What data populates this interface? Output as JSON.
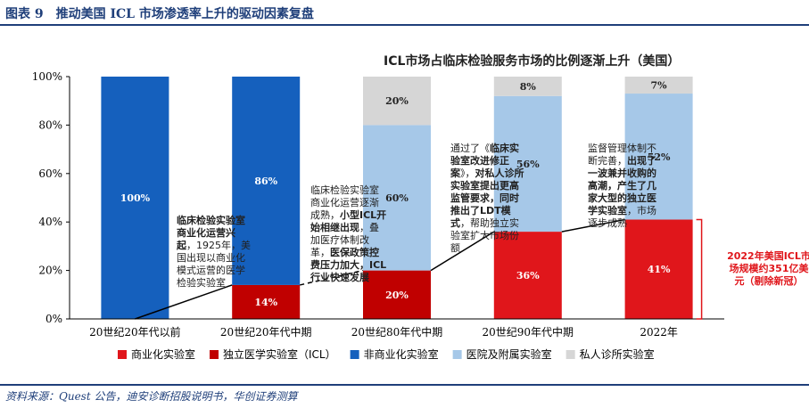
{
  "figure_title": "图表 9　推动美国 ICL 市场渗透率上升的驱动因素复盘",
  "source": "资料来源：Quest 公告，迪安诊断招股说明书，华创证券测算",
  "colors": {
    "commercial": "#e0161b",
    "independent": "#c00000",
    "non_commercial": "#1560bd",
    "hospital": "#a6c8e8",
    "private_clinic": "#d6d6d6",
    "frame": "#1f3f7a"
  },
  "chart_data": {
    "type": "bar",
    "stacked": true,
    "title": "ICL市场占临床检验服务市场的比例逐渐上升（美国）",
    "categories": [
      "20世纪20年代以前",
      "20世纪20年代中期",
      "20世纪80年代中期",
      "20世纪90年代中期",
      "2022年"
    ],
    "ylim": [
      0,
      100
    ],
    "yticks": [
      "0%",
      "20%",
      "40%",
      "60%",
      "80%",
      "100%"
    ],
    "series": [
      {
        "name": "商业化实验室",
        "color": "#e0161b",
        "values": [
          null,
          null,
          null,
          36,
          41
        ],
        "labels": [
          "",
          "",
          "",
          "36%",
          "41%"
        ]
      },
      {
        "name": "独立医学实验室（ICL）",
        "color": "#c00000",
        "values": [
          0,
          14,
          20,
          null,
          null
        ],
        "labels": [
          "0%",
          "14%",
          "20%",
          "",
          ""
        ]
      },
      {
        "name": "非商业化实验室",
        "color": "#1560bd",
        "values": [
          100,
          86,
          null,
          null,
          null
        ],
        "labels": [
          "100%",
          "86%",
          "",
          "",
          ""
        ]
      },
      {
        "name": "医院及附属实验室",
        "color": "#a6c8e8",
        "values": [
          null,
          null,
          60,
          56,
          52
        ],
        "labels": [
          "",
          "",
          "60%",
          "56%",
          "52%"
        ]
      },
      {
        "name": "私人诊所实验室",
        "color": "#d6d6d6",
        "values": [
          null,
          null,
          20,
          8,
          7
        ],
        "labels": [
          "",
          "",
          "20%",
          "8%",
          "7%"
        ]
      }
    ],
    "legend_position": "bottom",
    "grid": false
  },
  "annotations": {
    "a1": {
      "p1": "临床检验实验室商业化运营兴起",
      "p2": "，1925年，美国出现以商业化模式运营的医学检验实验室"
    },
    "a2": {
      "p1": "临床检验实验室商业化运营逐渐成熟，",
      "p2": "小型ICL开始相继出现",
      "p3": "，叠加医疗体制改革，",
      "p4": "医保政策控费压力加大，ICL行业快速发展"
    },
    "a3": {
      "p1": "通过了《",
      "p2": "临床实验室改进修正案",
      "p3": "》，",
      "p4": "对私人诊所实验室提出更高监管要求，同时推出了LDT模式",
      "p5": "，帮助独立实验室扩大市场份额"
    },
    "a4": {
      "p1": "监督管理体制不断完善，",
      "p2": "出现了一波兼并收购的高潮，产生了几家大型的独立医学实验室",
      "p3": "，市场逐步成熟"
    },
    "side_note": "2022年美国ICL市场规模约351亿美元（剔除新冠）"
  }
}
